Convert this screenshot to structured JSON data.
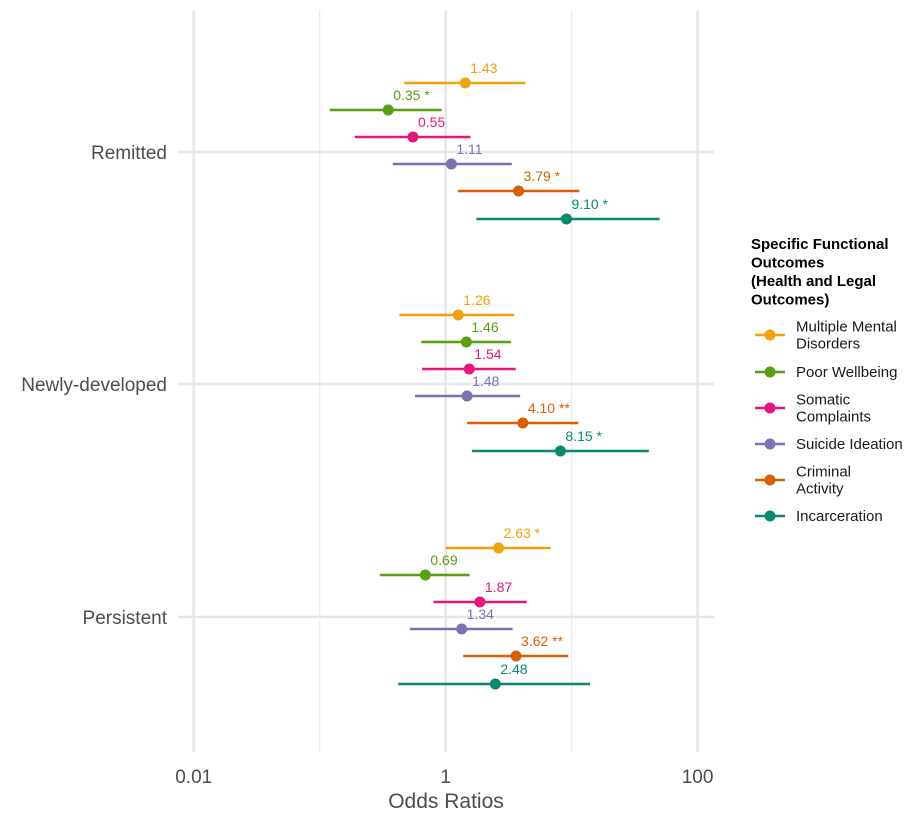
{
  "chart_data": {
    "type": "forest",
    "xlabel": "Odds Ratios",
    "xscale": "log10",
    "xlim": [
      0.0075,
      135
    ],
    "x_ticks": [
      {
        "value": 0.01,
        "label": "0.01"
      },
      {
        "value": 1,
        "label": "1"
      },
      {
        "value": 100,
        "label": "100"
      }
    ],
    "x_minor_ticks": [
      0.1,
      10
    ],
    "grid": true,
    "legend_position": "right",
    "categories": [
      "Remitted",
      "Newly-developed",
      "Persistent"
    ],
    "legend": {
      "title_lines": [
        "Specific Functional",
        "Outcomes",
        "(Health and Legal",
        "Outcomes)"
      ]
    },
    "series": [
      {
        "name": "Multiple Mental Disorders",
        "label_lines": [
          "Multiple Mental",
          "Disorders"
        ],
        "color": "#F0A30A",
        "points": [
          {
            "category": "Remitted",
            "or": 1.43,
            "low": 0.47,
            "high": 4.3,
            "label": "1.43"
          },
          {
            "category": "Newly-developed",
            "or": 1.26,
            "low": 0.43,
            "high": 3.5,
            "label": "1.26"
          },
          {
            "category": "Persistent",
            "or": 2.63,
            "low": 1.0,
            "high": 6.8,
            "label": "2.63 *"
          }
        ]
      },
      {
        "name": "Poor Wellbeing",
        "label_lines": [
          "Poor Wellbeing"
        ],
        "color": "#5A9E12",
        "points": [
          {
            "category": "Remitted",
            "or": 0.35,
            "low": 0.12,
            "high": 0.93,
            "label": "0.35 *"
          },
          {
            "category": "Newly-developed",
            "or": 1.46,
            "low": 0.64,
            "high": 3.3,
            "label": "1.46"
          },
          {
            "category": "Persistent",
            "or": 0.69,
            "low": 0.3,
            "high": 1.55,
            "label": "0.69"
          }
        ]
      },
      {
        "name": "Somatic Complaints",
        "label_lines": [
          "Somatic",
          "Complaints"
        ],
        "color": "#E7157E",
        "points": [
          {
            "category": "Remitted",
            "or": 0.55,
            "low": 0.19,
            "high": 1.57,
            "label": "0.55"
          },
          {
            "category": "Newly-developed",
            "or": 1.54,
            "low": 0.65,
            "high": 3.6,
            "label": "1.54"
          },
          {
            "category": "Persistent",
            "or": 1.87,
            "low": 0.8,
            "high": 4.4,
            "label": "1.87"
          }
        ]
      },
      {
        "name": "Suicide Ideation",
        "label_lines": [
          "Suicide Ideation"
        ],
        "color": "#7B72B3",
        "points": [
          {
            "category": "Remitted",
            "or": 1.11,
            "low": 0.38,
            "high": 3.35,
            "label": "1.11"
          },
          {
            "category": "Newly-developed",
            "or": 1.48,
            "low": 0.57,
            "high": 3.9,
            "label": "1.48"
          },
          {
            "category": "Persistent",
            "or": 1.34,
            "low": 0.52,
            "high": 3.4,
            "label": "1.34"
          }
        ]
      },
      {
        "name": "Criminal Activity",
        "label_lines": [
          "Criminal",
          "Activity"
        ],
        "color": "#D95F02",
        "points": [
          {
            "category": "Remitted",
            "or": 3.79,
            "low": 1.25,
            "high": 11.5,
            "label": "3.79 *"
          },
          {
            "category": "Newly-developed",
            "or": 4.1,
            "low": 1.48,
            "high": 11.3,
            "label": "4.10 **"
          },
          {
            "category": "Persistent",
            "or": 3.62,
            "low": 1.38,
            "high": 9.4,
            "label": "3.62 **"
          }
        ]
      },
      {
        "name": "Incarceration",
        "label_lines": [
          "Incarceration"
        ],
        "color": "#088A6E",
        "points": [
          {
            "category": "Remitted",
            "or": 9.1,
            "low": 1.75,
            "high": 50,
            "label": "9.10 *"
          },
          {
            "category": "Newly-developed",
            "or": 8.15,
            "low": 1.62,
            "high": 41,
            "label": "8.15 *"
          },
          {
            "category": "Persistent",
            "or": 2.48,
            "low": 0.42,
            "high": 14,
            "label": "2.48"
          }
        ]
      }
    ]
  }
}
